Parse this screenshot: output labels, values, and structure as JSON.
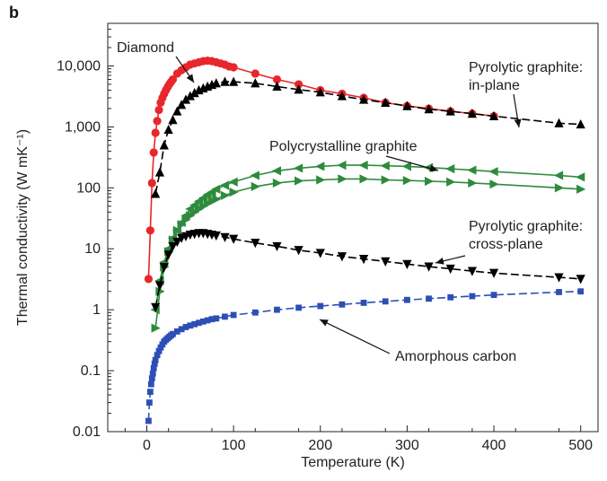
{
  "panel_label": "b",
  "chart_data": {
    "type": "line",
    "xlabel": "Temperature (K)",
    "ylabel": "Thermal conductivity (W mK⁻¹)",
    "xlim": [
      -45,
      520
    ],
    "ylim": [
      0.01,
      50000
    ],
    "yscale": "log",
    "grid": false,
    "legend": "none",
    "x_ticks": [
      0,
      100,
      200,
      300,
      400,
      500
    ],
    "x_tick_labels": [
      "0",
      "100",
      "200",
      "300",
      "400",
      "500"
    ],
    "y_ticks": [
      0.01,
      0.1,
      1,
      10,
      100,
      1000,
      10000
    ],
    "y_tick_labels": [
      "0.01",
      "0.1",
      "1",
      "10",
      "100",
      "1,000",
      "10,000"
    ],
    "annotations": [
      {
        "lines": [
          "Diamond"
        ]
      },
      {
        "lines": [
          "Pyrolytic graphite:",
          "in-plane"
        ]
      },
      {
        "lines": [
          "Polycrystalline graphite"
        ]
      },
      {
        "lines": [
          "Pyrolytic graphite:",
          "cross-plane"
        ]
      },
      {
        "lines": [
          "Amorphous carbon"
        ]
      }
    ],
    "series": [
      {
        "marker": "circle",
        "color": "#e8262c",
        "line_color": "#e8262c",
        "dashed": false,
        "x": [
          2,
          4,
          6,
          8,
          10,
          12,
          14,
          16,
          18,
          20,
          22,
          24,
          26,
          28,
          30,
          35,
          40,
          45,
          50,
          55,
          60,
          65,
          70,
          75,
          80,
          85,
          90,
          95,
          100,
          125,
          150,
          175,
          200,
          225,
          250,
          275,
          300,
          325,
          350,
          375,
          400
        ],
        "y": [
          3.2,
          20,
          120,
          380,
          800,
          1250,
          1900,
          2500,
          3000,
          3500,
          4000,
          4500,
          5000,
          5500,
          6000,
          7500,
          8500,
          9500,
          10500,
          11000,
          11500,
          12000,
          12200,
          12000,
          11500,
          11000,
          10500,
          9800,
          9500,
          7500,
          6000,
          5000,
          4000,
          3500,
          3000,
          2500,
          2200,
          2000,
          1800,
          1650,
          1500
        ]
      },
      {
        "marker": "triangle-up",
        "color": "#000000",
        "line_color": "#000000",
        "dashed": true,
        "x": [
          10,
          15,
          20,
          25,
          30,
          35,
          40,
          45,
          50,
          55,
          60,
          65,
          70,
          75,
          80,
          90,
          100,
          125,
          150,
          175,
          200,
          225,
          250,
          275,
          300,
          325,
          350,
          375,
          400,
          475,
          500
        ],
        "y": [
          80,
          180,
          500,
          900,
          1300,
          1800,
          2300,
          2800,
          3200,
          3600,
          4000,
          4300,
          4600,
          4900,
          5200,
          5500,
          5500,
          5200,
          4600,
          4100,
          3700,
          3200,
          2800,
          2500,
          2200,
          1950,
          1800,
          1650,
          1500,
          1150,
          1100
        ]
      },
      {
        "marker": "triangle-left",
        "color": "#2e8b3d",
        "line_color": "#2e8b3d",
        "dashed": false,
        "x": [
          10,
          15,
          20,
          25,
          30,
          35,
          40,
          45,
          50,
          55,
          60,
          65,
          70,
          75,
          80,
          90,
          100,
          125,
          150,
          175,
          200,
          225,
          250,
          275,
          300,
          325,
          350,
          375,
          400,
          475,
          500
        ],
        "y": [
          1,
          3,
          6,
          10,
          15,
          20,
          27,
          35,
          45,
          52,
          60,
          68,
          77,
          85,
          95,
          110,
          125,
          160,
          190,
          210,
          225,
          235,
          235,
          230,
          225,
          215,
          205,
          195,
          185,
          160,
          150
        ]
      },
      {
        "marker": "triangle-right",
        "color": "#2e8b3d",
        "line_color": "#2e8b3d",
        "dashed": false,
        "x": [
          10,
          15,
          20,
          25,
          30,
          35,
          40,
          45,
          50,
          55,
          60,
          65,
          70,
          75,
          80,
          90,
          100,
          125,
          150,
          175,
          200,
          225,
          250,
          275,
          300,
          325,
          350,
          375,
          400,
          475,
          500
        ],
        "y": [
          0.5,
          2,
          5,
          9,
          14,
          20,
          25,
          30,
          35,
          40,
          45,
          50,
          55,
          60,
          65,
          75,
          85,
          105,
          120,
          130,
          135,
          140,
          140,
          135,
          132,
          128,
          125,
          120,
          115,
          100,
          95
        ]
      },
      {
        "marker": "triangle-down",
        "color": "#000000",
        "line_color": "#000000",
        "dashed": true,
        "x": [
          10,
          15,
          20,
          25,
          30,
          35,
          40,
          45,
          50,
          55,
          60,
          65,
          70,
          75,
          80,
          90,
          100,
          125,
          150,
          175,
          200,
          225,
          250,
          275,
          300,
          325,
          350,
          375,
          400,
          475,
          500
        ],
        "y": [
          1.1,
          2.5,
          5,
          8,
          11,
          13,
          15,
          16,
          17,
          17.5,
          18,
          18,
          17.5,
          17,
          16.5,
          15.5,
          14.5,
          12.5,
          11,
          9.5,
          8.5,
          7.5,
          6.8,
          6.2,
          5.6,
          5.1,
          4.7,
          4.3,
          4,
          3.4,
          3.2
        ]
      },
      {
        "marker": "square",
        "color": "#2d4fb5",
        "line_color": "#2d4fb5",
        "dashed": true,
        "x": [
          2,
          3,
          4,
          5,
          6,
          7,
          8,
          9,
          10,
          12,
          14,
          16,
          18,
          20,
          22,
          24,
          26,
          28,
          30,
          35,
          40,
          45,
          50,
          55,
          60,
          65,
          70,
          75,
          80,
          90,
          100,
          125,
          150,
          175,
          200,
          225,
          250,
          275,
          300,
          325,
          350,
          375,
          400,
          475,
          500
        ],
        "y": [
          0.015,
          0.03,
          0.045,
          0.06,
          0.075,
          0.09,
          0.11,
          0.13,
          0.15,
          0.18,
          0.21,
          0.24,
          0.27,
          0.3,
          0.32,
          0.34,
          0.36,
          0.38,
          0.4,
          0.44,
          0.48,
          0.52,
          0.55,
          0.58,
          0.61,
          0.64,
          0.67,
          0.7,
          0.72,
          0.77,
          0.82,
          0.9,
          1,
          1.08,
          1.15,
          1.22,
          1.3,
          1.37,
          1.45,
          1.52,
          1.6,
          1.67,
          1.75,
          1.95,
          2
        ]
      }
    ]
  }
}
